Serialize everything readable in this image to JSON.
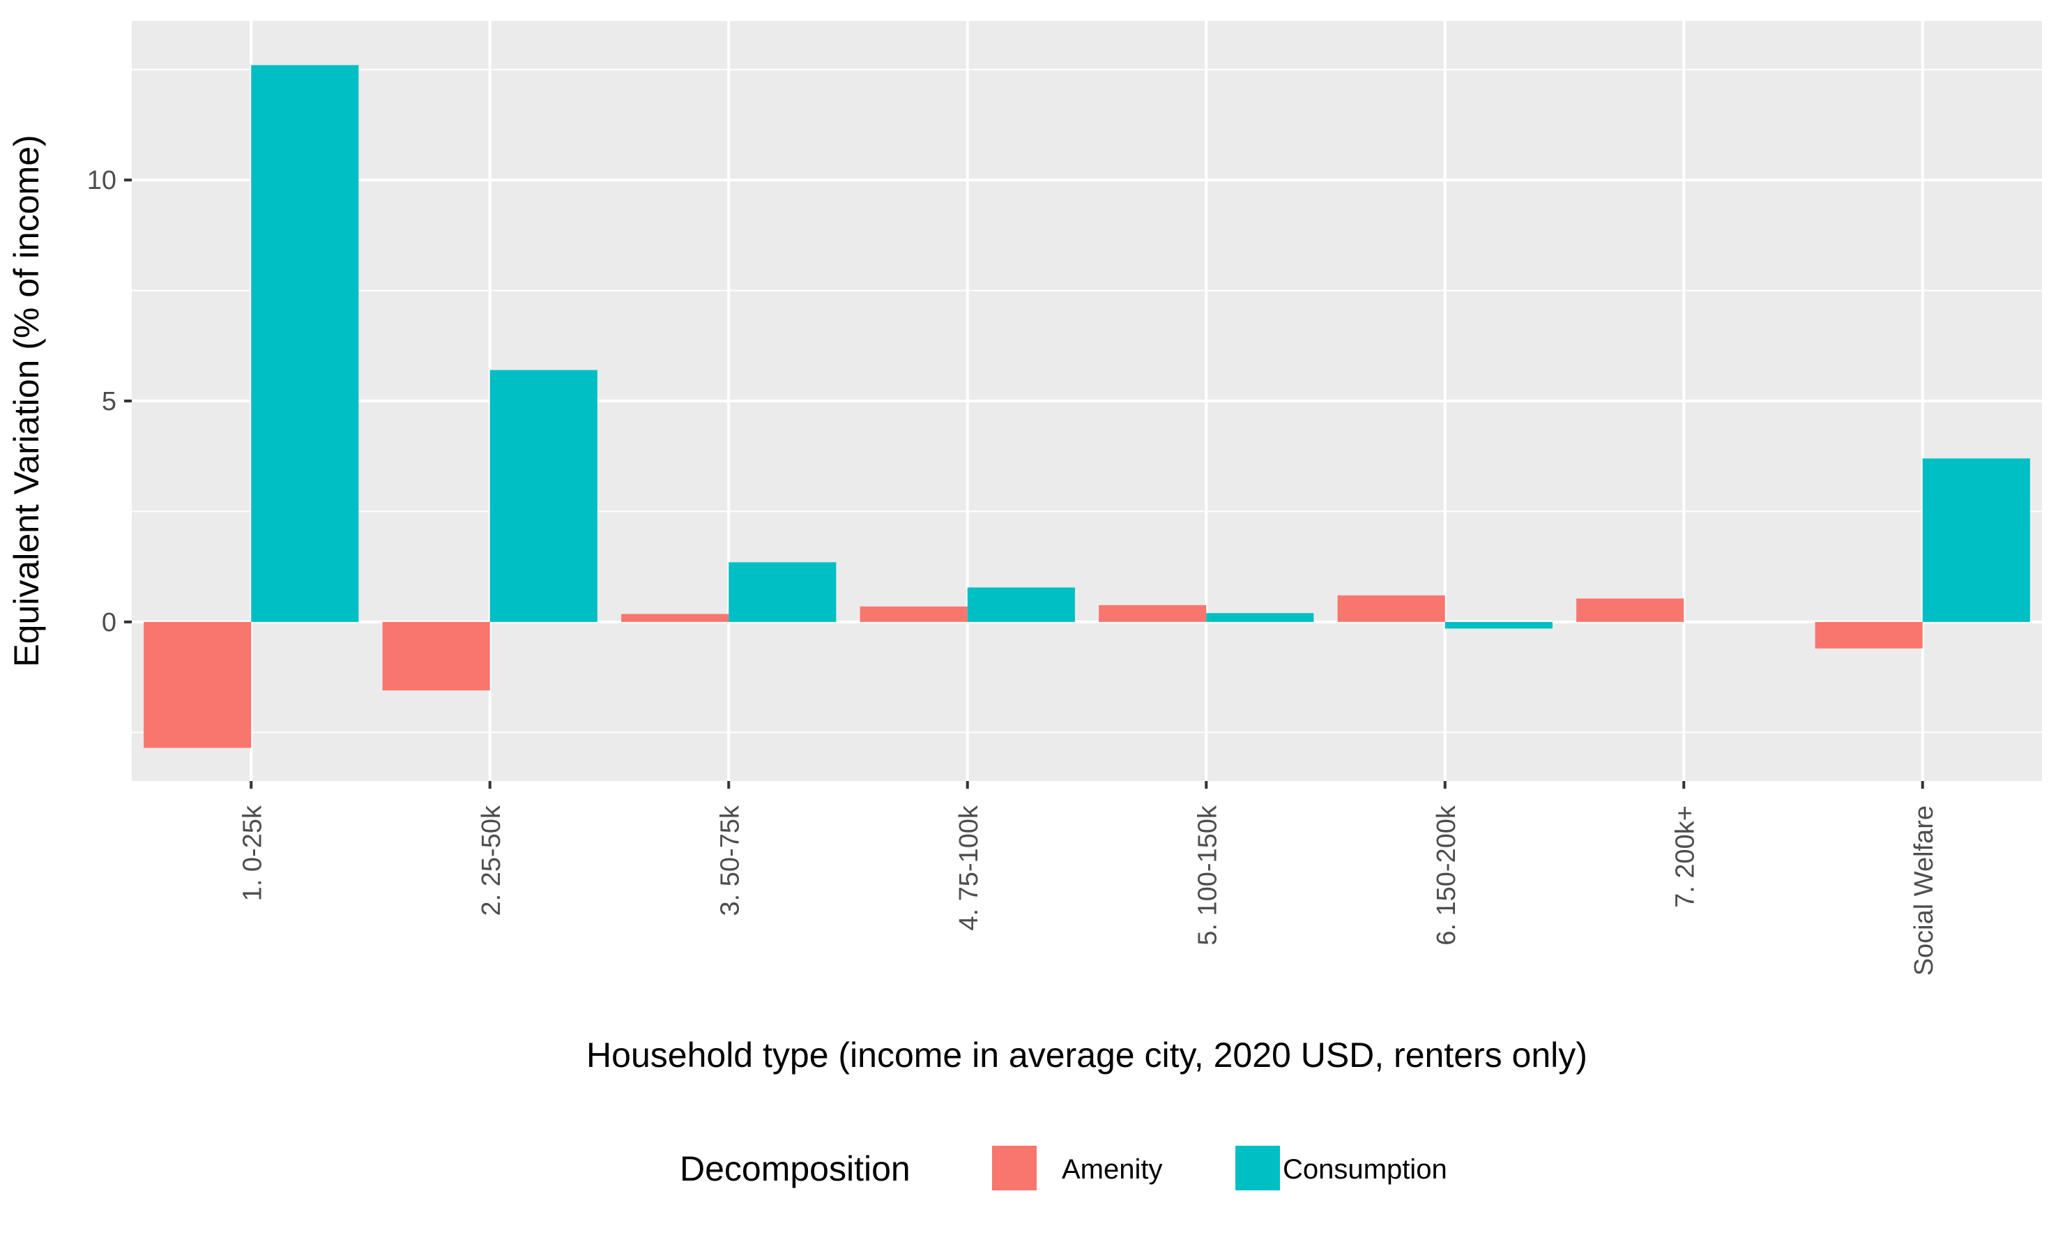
{
  "chart_data": {
    "type": "bar",
    "categories": [
      "1. 0-25k",
      "2. 25-50k",
      "3. 50-75k",
      "4. 75-100k",
      "5. 100-150k",
      "6. 150-200k",
      "7. 200k+",
      "Social Welfare"
    ],
    "series": [
      {
        "name": "Amenity",
        "color": "#F8766D",
        "values": [
          -2.85,
          -1.55,
          0.18,
          0.35,
          0.38,
          0.6,
          0.53,
          -0.6
        ]
      },
      {
        "name": "Consumption",
        "color": "#00BFC4",
        "values": [
          12.6,
          5.7,
          1.35,
          0.78,
          0.2,
          -0.15,
          0.0,
          3.7
        ]
      }
    ],
    "xlabel": "Household type (income in average city, 2020 USD, renters only)",
    "ylabel": "Equivalent Variation (% of income)",
    "ylim": [
      -3.6,
      13.6
    ],
    "yticks": [
      0,
      5,
      10
    ],
    "grid": true,
    "legend": {
      "title": "Decomposition",
      "position": "bottom"
    }
  }
}
